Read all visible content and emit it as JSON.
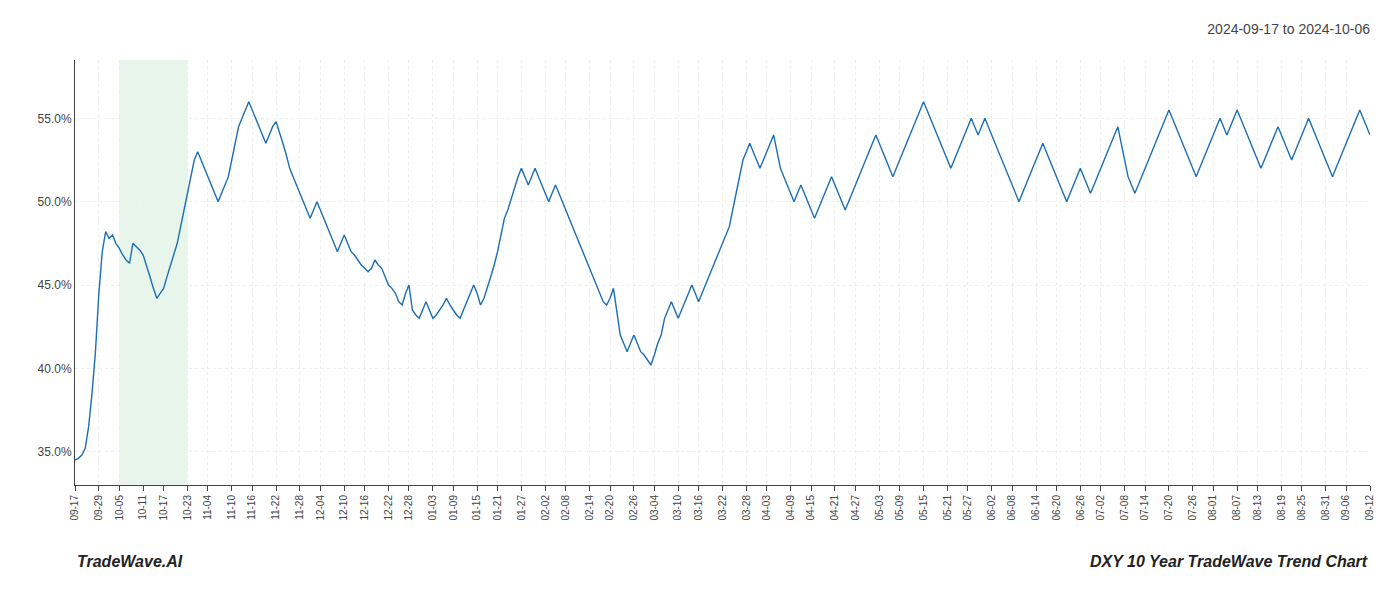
{
  "chart_data": {
    "type": "line",
    "title": "2024-09-17 to 2024-10-06",
    "annotations": [
      {
        "text": "TradeWave.AI"
      },
      {
        "text": "DXY 10 Year TradeWave Trend Chart"
      }
    ],
    "color": "#1c6eb4",
    "grid": true,
    "spans": [
      {
        "from": "10-05",
        "to": "10-23",
        "color": "#d4edda"
      }
    ],
    "ylim": [
      33.0,
      58.5
    ],
    "yticks": [
      {
        "value": 35.0,
        "label": "35.0%"
      },
      {
        "value": 40.0,
        "label": "40.0%"
      },
      {
        "value": 45.0,
        "label": "45.0%"
      },
      {
        "value": 50.0,
        "label": "50.0%"
      },
      {
        "value": 55.0,
        "label": "55.0%"
      }
    ],
    "categories": [
      "09-17",
      null,
      null,
      null,
      null,
      null,
      null,
      "09-29",
      null,
      null,
      null,
      null,
      null,
      "10-05",
      null,
      null,
      null,
      null,
      null,
      null,
      "10-11",
      null,
      null,
      null,
      null,
      null,
      "10-17",
      null,
      null,
      null,
      null,
      null,
      null,
      "10-23",
      null,
      null,
      null,
      null,
      null,
      "11-04",
      null,
      null,
      null,
      null,
      null,
      null,
      "11-10",
      null,
      null,
      null,
      null,
      null,
      "11-16",
      null,
      null,
      null,
      null,
      null,
      null,
      "11-22",
      null,
      null,
      null,
      null,
      null,
      null,
      "11-28",
      null,
      null,
      null,
      null,
      null,
      "12-04",
      null,
      null,
      null,
      null,
      null,
      null,
      "12-10",
      null,
      null,
      null,
      null,
      null,
      "12-16",
      null,
      null,
      null,
      null,
      null,
      null,
      "12-22",
      null,
      null,
      null,
      null,
      null,
      "12-28",
      null,
      null,
      null,
      null,
      null,
      null,
      "01-03",
      null,
      null,
      null,
      null,
      null,
      "01-09",
      null,
      null,
      null,
      null,
      null,
      null,
      "01-15",
      null,
      null,
      null,
      null,
      null,
      "01-21",
      null,
      null,
      null,
      null,
      null,
      null,
      "01-27",
      null,
      null,
      null,
      null,
      null,
      null,
      "02-02",
      null,
      null,
      null,
      null,
      null,
      "02-08",
      null,
      null,
      null,
      null,
      null,
      null,
      "02-14",
      null,
      null,
      null,
      null,
      null,
      "02-20",
      null,
      null,
      null,
      null,
      null,
      null,
      "02-26",
      null,
      null,
      null,
      null,
      null,
      "03-04",
      null,
      null,
      null,
      null,
      null,
      null,
      "03-10",
      null,
      null,
      null,
      null,
      null,
      "03-16",
      null,
      null,
      null,
      null,
      null,
      null,
      "03-22",
      null,
      null,
      null,
      null,
      null,
      null,
      "03-28",
      null,
      null,
      null,
      null,
      null,
      "04-03",
      null,
      null,
      null,
      null,
      null,
      null,
      "04-09",
      null,
      null,
      null,
      null,
      null,
      "04-15",
      null,
      null,
      null,
      null,
      null,
      null,
      "04-21",
      null,
      null,
      null,
      null,
      null,
      "04-27",
      null,
      null,
      null,
      null,
      null,
      null,
      "05-03",
      null,
      null,
      null,
      null,
      null,
      "05-09",
      null,
      null,
      null,
      null,
      null,
      null,
      "05-15",
      null,
      null,
      null,
      null,
      null,
      null,
      "05-21",
      null,
      null,
      null,
      null,
      null,
      "05-27",
      null,
      null,
      null,
      null,
      null,
      null,
      "06-02",
      null,
      null,
      null,
      null,
      null,
      "06-08",
      null,
      null,
      null,
      null,
      null,
      null,
      "06-14",
      null,
      null,
      null,
      null,
      null,
      "06-20",
      null,
      null,
      null,
      null,
      null,
      null,
      "06-26",
      null,
      null,
      null,
      null,
      null,
      "07-02",
      null,
      null,
      null,
      null,
      null,
      null,
      "07-08",
      null,
      null,
      null,
      null,
      null,
      "07-14",
      null,
      null,
      null,
      null,
      null,
      null,
      "07-20",
      null,
      null,
      null,
      null,
      null,
      null,
      "07-26",
      null,
      null,
      null,
      null,
      null,
      "08-01",
      null,
      null,
      null,
      null,
      null,
      null,
      "08-07",
      null,
      null,
      null,
      null,
      null,
      "08-13",
      null,
      null,
      null,
      null,
      null,
      null,
      "08-19",
      null,
      null,
      null,
      null,
      null,
      "08-25",
      null,
      null,
      null,
      null,
      null,
      null,
      "08-31",
      null,
      null,
      null,
      null,
      null,
      "09-06",
      null,
      null,
      null,
      null,
      null,
      null,
      "09-12"
    ],
    "values": [
      34.5,
      34.6,
      34.8,
      35.2,
      36.5,
      38.5,
      41.0,
      44.5,
      47.0,
      48.2,
      47.8,
      48.0,
      47.5,
      47.2,
      46.8,
      46.5,
      46.3,
      47.5,
      47.3,
      47.1,
      46.8,
      46.2,
      45.5,
      44.8,
      44.2,
      44.5,
      44.8,
      45.5,
      46.2,
      46.8,
      47.5,
      48.5,
      49.5,
      50.5,
      51.5,
      52.5,
      53.0,
      52.5,
      52.0,
      51.5,
      51.0,
      50.5,
      50.0,
      50.5,
      51.0,
      51.5,
      52.5,
      53.5,
      54.5,
      55.0,
      55.5,
      56.0,
      55.5,
      55.0,
      54.5,
      54.0,
      53.5,
      54.0,
      54.5,
      54.8,
      54.2,
      53.5,
      52.8,
      52.0,
      51.5,
      51.0,
      50.5,
      50.0,
      49.5,
      49.0,
      49.5,
      50.0,
      49.5,
      49.0,
      48.5,
      48.0,
      47.5,
      47.0,
      47.5,
      48.0,
      47.5,
      47.0,
      46.8,
      46.5,
      46.2,
      46.0,
      45.8,
      46.0,
      46.5,
      46.2,
      46.0,
      45.5,
      45.0,
      44.8,
      44.5,
      44.0,
      43.8,
      44.5,
      45.0,
      43.5,
      43.2,
      43.0,
      43.5,
      44.0,
      43.5,
      43.0,
      43.2,
      43.5,
      43.8,
      44.2,
      43.8,
      43.5,
      43.2,
      43.0,
      43.5,
      44.0,
      44.5,
      45.0,
      44.5,
      43.8,
      44.2,
      44.8,
      45.5,
      46.2,
      47.0,
      48.0,
      49.0,
      49.5,
      50.2,
      50.8,
      51.5,
      52.0,
      51.5,
      51.0,
      51.5,
      52.0,
      51.5,
      51.0,
      50.5,
      50.0,
      50.5,
      51.0,
      50.5,
      50.0,
      49.5,
      49.0,
      48.5,
      48.0,
      47.5,
      47.0,
      46.5,
      46.0,
      45.5,
      45.0,
      44.5,
      44.0,
      43.8,
      44.2,
      44.8,
      43.5,
      42.0,
      41.5,
      41.0,
      41.5,
      42.0,
      41.5,
      41.0,
      40.8,
      40.5,
      40.2,
      40.8,
      41.5,
      42.0,
      43.0,
      43.5,
      44.0,
      43.5,
      43.0,
      43.5,
      44.0,
      44.5,
      45.0,
      44.5,
      44.0,
      44.5,
      45.0,
      45.5,
      46.0,
      46.5,
      47.0,
      47.5,
      48.0,
      48.5,
      49.5,
      50.5,
      51.5,
      52.5,
      53.0,
      53.5,
      53.0,
      52.5,
      52.0,
      52.5,
      53.0,
      53.5,
      54.0,
      53.0,
      52.0,
      51.5,
      51.0,
      50.5,
      50.0,
      50.5,
      51.0,
      50.5,
      50.0,
      49.5,
      49.0,
      49.5,
      50.0,
      50.5,
      51.0,
      51.5,
      51.0,
      50.5,
      50.0,
      49.5,
      50.0,
      50.5,
      51.0,
      51.5,
      52.0,
      52.5,
      53.0,
      53.5,
      54.0,
      53.5,
      53.0,
      52.5,
      52.0,
      51.5,
      52.0,
      52.5,
      53.0,
      53.5,
      54.0,
      54.5,
      55.0,
      55.5,
      56.0,
      55.5,
      55.0,
      54.5,
      54.0,
      53.5,
      53.0,
      52.5,
      52.0,
      52.5,
      53.0,
      53.5,
      54.0,
      54.5,
      55.0,
      54.5,
      54.0,
      54.5,
      55.0,
      54.5,
      54.0,
      53.5,
      53.0,
      52.5,
      52.0,
      51.5,
      51.0,
      50.5,
      50.0,
      50.5,
      51.0,
      51.5,
      52.0,
      52.5,
      53.0,
      53.5,
      53.0,
      52.5,
      52.0,
      51.5,
      51.0,
      50.5,
      50.0,
      50.5,
      51.0,
      51.5,
      52.0,
      51.5,
      51.0,
      50.5,
      51.0,
      51.5,
      52.0,
      52.5,
      53.0,
      53.5,
      54.0,
      54.5,
      53.5,
      52.5,
      51.5,
      51.0,
      50.5,
      51.0,
      51.5,
      52.0,
      52.5,
      53.0,
      53.5,
      54.0,
      54.5,
      55.0,
      55.5,
      55.0,
      54.5,
      54.0,
      53.5,
      53.0,
      52.5,
      52.0,
      51.5,
      52.0,
      52.5,
      53.0,
      53.5,
      54.0,
      54.5,
      55.0,
      54.5,
      54.0,
      54.5,
      55.0,
      55.5,
      55.0,
      54.5,
      54.0,
      53.5,
      53.0,
      52.5,
      52.0,
      52.5,
      53.0,
      53.5,
      54.0,
      54.5,
      54.0,
      53.5,
      53.0,
      52.5,
      53.0,
      53.5,
      54.0,
      54.5,
      55.0,
      54.5,
      54.0,
      53.5,
      53.0,
      52.5,
      52.0,
      51.5,
      52.0,
      52.5,
      53.0,
      53.5,
      54.0,
      54.5,
      55.0,
      55.5,
      55.0,
      54.5,
      54.0
    ]
  }
}
